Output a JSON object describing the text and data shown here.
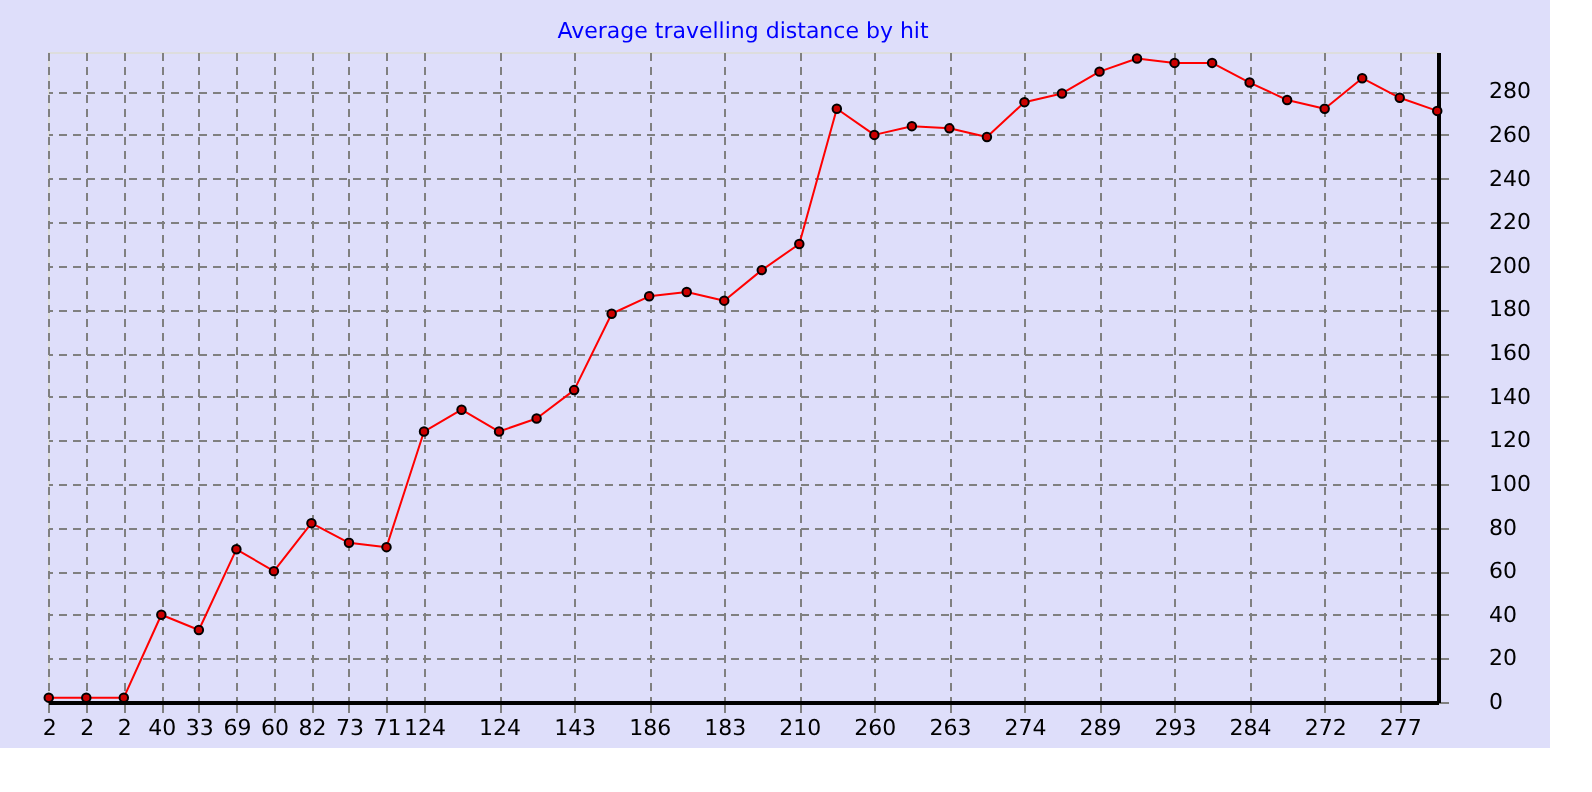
{
  "chart_data": {
    "type": "line",
    "title": "Average travelling distance by hit",
    "categories": [
      "2",
      "2",
      "2",
      "40",
      "33",
      "69",
      "60",
      "82",
      "73",
      "71",
      "124",
      null,
      "124",
      null,
      "143",
      null,
      "186",
      null,
      "183",
      null,
      "210",
      null,
      "260",
      null,
      "263",
      null,
      "274",
      null,
      "289",
      null,
      "293",
      null,
      "284",
      null,
      "272",
      null,
      "277",
      null
    ],
    "series": [
      {
        "color": "#ff0000",
        "values": [
          2,
          2,
          2,
          40,
          33,
          70,
          60,
          82,
          73,
          71,
          124,
          134,
          124,
          130,
          143,
          178,
          186,
          188,
          184,
          198,
          210,
          272,
          260,
          264,
          263,
          259,
          275,
          279,
          289,
          295,
          293,
          293,
          284,
          276,
          272,
          286,
          277,
          271
        ]
      }
    ],
    "ylim": [
      0,
      298
    ],
    "yticks": [
      0,
      20,
      40,
      60,
      80,
      100,
      120,
      140,
      160,
      180,
      200,
      220,
      240,
      260,
      280
    ],
    "grid": true,
    "marker": "circle",
    "line_style": "solid"
  }
}
